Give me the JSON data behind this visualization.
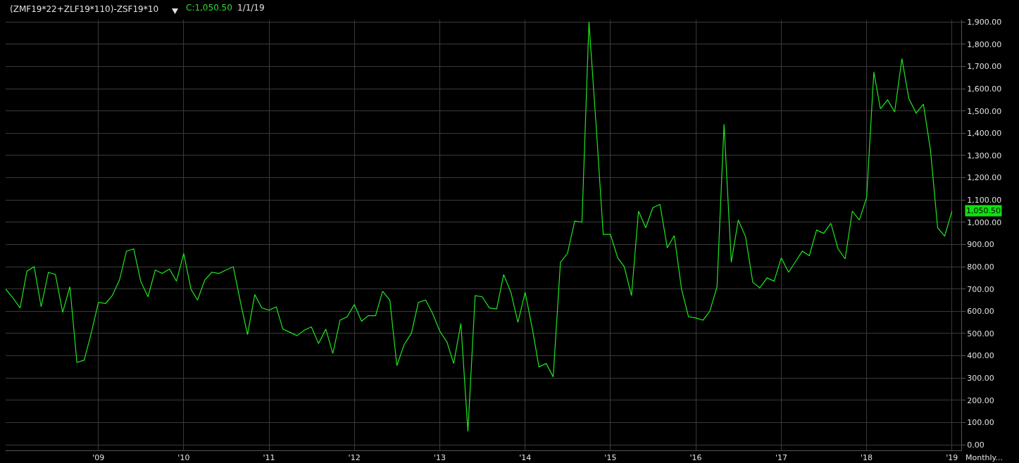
{
  "chart_data": {
    "type": "line",
    "title": "(ZMF19*22+ZLF19*110)-ZSF19*10",
    "annotations": [
      "C:1,050.50",
      "1/1/19",
      {
        "text": "1,050.50",
        "x": "2019-01",
        "y": 1050.5
      },
      "Monthly..."
    ],
    "x": [
      "2007-12",
      "2008-01",
      "2008-02",
      "2008-03",
      "2008-04",
      "2008-05",
      "2008-06",
      "2008-07",
      "2008-08",
      "2008-09",
      "2008-10",
      "2008-11",
      "2008-12",
      "2009-01",
      "2009-02",
      "2009-03",
      "2009-04",
      "2009-05",
      "2009-06",
      "2009-07",
      "2009-08",
      "2009-09",
      "2009-10",
      "2009-11",
      "2009-12",
      "2010-01",
      "2010-02",
      "2010-03",
      "2010-04",
      "2010-05",
      "2010-06",
      "2010-07",
      "2010-08",
      "2010-09",
      "2010-10",
      "2010-11",
      "2010-12",
      "2011-01",
      "2011-02",
      "2011-03",
      "2011-04",
      "2011-05",
      "2011-06",
      "2011-07",
      "2011-08",
      "2011-09",
      "2011-10",
      "2011-11",
      "2011-12",
      "2012-01",
      "2012-02",
      "2012-03",
      "2012-04",
      "2012-05",
      "2012-06",
      "2012-07",
      "2012-08",
      "2012-09",
      "2012-10",
      "2012-11",
      "2012-12",
      "2013-01",
      "2013-02",
      "2013-03",
      "2013-04",
      "2013-05",
      "2013-06",
      "2013-07",
      "2013-08",
      "2013-09",
      "2013-10",
      "2013-11",
      "2013-12",
      "2014-01",
      "2014-02",
      "2014-03",
      "2014-04",
      "2014-05",
      "2014-06",
      "2014-07",
      "2014-08",
      "2014-09",
      "2014-10",
      "2014-11",
      "2014-12",
      "2015-01",
      "2015-02",
      "2015-03",
      "2015-04",
      "2015-05",
      "2015-06",
      "2015-07",
      "2015-08",
      "2015-09",
      "2015-10",
      "2015-11",
      "2015-12",
      "2016-01",
      "2016-02",
      "2016-03",
      "2016-04",
      "2016-05",
      "2016-06",
      "2016-07",
      "2016-08",
      "2016-09",
      "2016-10",
      "2016-11",
      "2016-12",
      "2017-01",
      "2017-02",
      "2017-03",
      "2017-04",
      "2017-05",
      "2017-06",
      "2017-07",
      "2017-08",
      "2017-09",
      "2017-10",
      "2017-11",
      "2017-12",
      "2018-01",
      "2018-02",
      "2018-03",
      "2018-04",
      "2018-05",
      "2018-06",
      "2018-07",
      "2018-08",
      "2018-09",
      "2018-10",
      "2018-11",
      "2018-12",
      "2019-01"
    ],
    "series": [
      {
        "color": "#1ee61e",
        "values": [
          700,
          660,
          615,
          780,
          800,
          620,
          775,
          765,
          595,
          710,
          370,
          380,
          500,
          640,
          635,
          670,
          740,
          870,
          880,
          735,
          665,
          785,
          770,
          790,
          735,
          860,
          700,
          650,
          740,
          775,
          770,
          785,
          800,
          640,
          495,
          675,
          615,
          605,
          620,
          520,
          505,
          490,
          515,
          530,
          455,
          520,
          410,
          560,
          575,
          630,
          555,
          580,
          580,
          690,
          650,
          355,
          450,
          500,
          640,
          650,
          590,
          510,
          460,
          365,
          545,
          60,
          670,
          665,
          615,
          610,
          765,
          685,
          550,
          685,
          520,
          350,
          365,
          305,
          820,
          860,
          1005,
          1000,
          1900,
          1430,
          945,
          945,
          840,
          800,
          670,
          1050,
          975,
          1065,
          1080,
          885,
          940,
          700,
          575,
          570,
          560,
          600,
          710,
          1440,
          820,
          1010,
          935,
          730,
          705,
          750,
          735,
          840,
          775,
          820,
          870,
          850,
          965,
          950,
          995,
          880,
          835,
          1050,
          1010,
          1110,
          1675,
          1510,
          1550,
          1495,
          1735,
          1555,
          1490,
          1530,
          1327,
          975,
          937,
          1050.5
        ]
      }
    ],
    "xlim": [
      "2007-12-01",
      "2019-02-10"
    ],
    "xticks": [
      {
        "value": "2009-01",
        "label": "'09"
      },
      {
        "value": "2010-01",
        "label": "'10"
      },
      {
        "value": "2011-01",
        "label": "'11"
      },
      {
        "value": "2012-01",
        "label": "'12"
      },
      {
        "value": "2013-01",
        "label": "'13"
      },
      {
        "value": "2014-01",
        "label": "'14"
      },
      {
        "value": "2015-01",
        "label": "'15"
      },
      {
        "value": "2016-01",
        "label": "'16"
      },
      {
        "value": "2017-01",
        "label": "'17"
      },
      {
        "value": "2018-01",
        "label": "'18"
      },
      {
        "value": "2019-01",
        "label": "'19"
      }
    ],
    "ylim": [
      -25,
      1910
    ],
    "yticks": [
      {
        "value": 0,
        "label": "0.00"
      },
      {
        "value": 100,
        "label": "100.00"
      },
      {
        "value": 200,
        "label": "200.00"
      },
      {
        "value": 300,
        "label": "300.00"
      },
      {
        "value": 400,
        "label": "400.00"
      },
      {
        "value": 500,
        "label": "500.00"
      },
      {
        "value": 600,
        "label": "600.00"
      },
      {
        "value": 700,
        "label": "700.00"
      },
      {
        "value": 800,
        "label": "800.00"
      },
      {
        "value": 900,
        "label": "900.00"
      },
      {
        "value": 1000,
        "label": "1,000.00"
      },
      {
        "value": 1100,
        "label": "1,100.00"
      },
      {
        "value": 1200,
        "label": "1,200.00"
      },
      {
        "value": 1300,
        "label": "1,300.00"
      },
      {
        "value": 1400,
        "label": "1,400.00"
      },
      {
        "value": 1500,
        "label": "1,500.00"
      },
      {
        "value": 1600,
        "label": "1,600.00"
      },
      {
        "value": 1700,
        "label": "1,700.00"
      },
      {
        "value": 1800,
        "label": "1,800.00"
      },
      {
        "value": 1900,
        "label": "1,900.00"
      }
    ],
    "grid": true,
    "marker": "none",
    "line_style": "solid"
  }
}
